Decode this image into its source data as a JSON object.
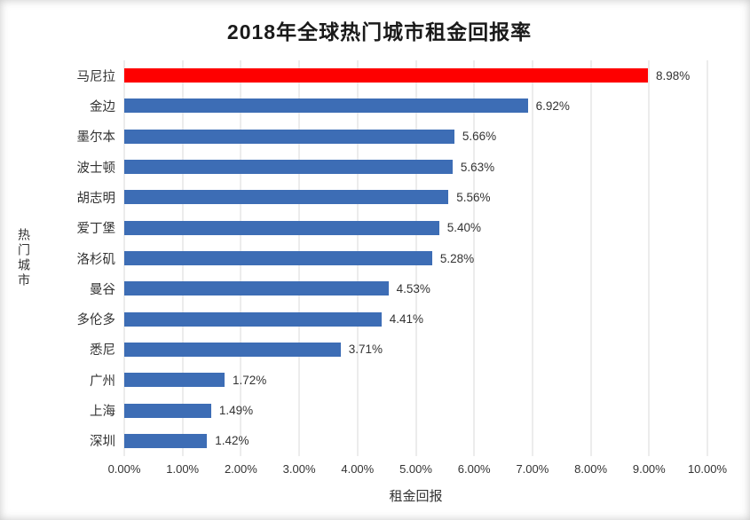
{
  "chart_data": {
    "type": "bar",
    "orientation": "horizontal",
    "title": "2018年全球热门城市租金回报率",
    "xlabel": "租金回报",
    "ylabel": "热门城市",
    "categories": [
      "马尼拉",
      "金边",
      "墨尔本",
      "波士顿",
      "胡志明",
      "爱丁堡",
      "洛杉矶",
      "曼谷",
      "多伦多",
      "悉尼",
      "广州",
      "上海",
      "深圳"
    ],
    "values": [
      8.98,
      6.92,
      5.66,
      5.63,
      5.56,
      5.4,
      5.28,
      4.53,
      4.41,
      3.71,
      1.72,
      1.49,
      1.42
    ],
    "labels": [
      "8.98%",
      "6.92%",
      "5.66%",
      "5.63%",
      "5.56%",
      "5.40%",
      "5.28%",
      "4.53%",
      "4.41%",
      "3.71%",
      "1.72%",
      "1.49%",
      "1.42%"
    ],
    "highlight_index": 0,
    "xlim": [
      0,
      10
    ],
    "x_ticks": [
      "0.00%",
      "1.00%",
      "2.00%",
      "3.00%",
      "4.00%",
      "5.00%",
      "6.00%",
      "7.00%",
      "8.00%",
      "9.00%",
      "10.00%"
    ],
    "grid": true,
    "legend": "none",
    "colors": {
      "bar": "#3d6db5",
      "highlight": "#fe0000",
      "gridline": "#d9d9d9",
      "text": "#333333",
      "background": "#ffffff"
    }
  }
}
